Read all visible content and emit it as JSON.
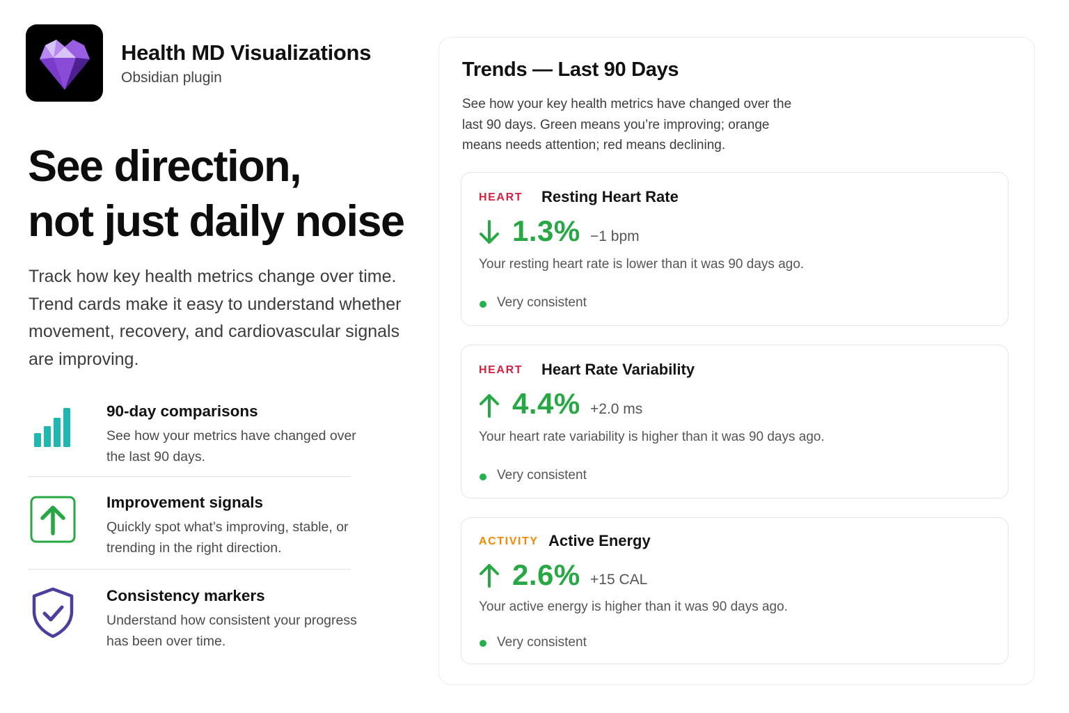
{
  "app": {
    "title": "Health MD Visualizations",
    "subtitle": "Obsidian plugin",
    "icon": "purple-gem-heart-icon"
  },
  "hero": {
    "headline_line1": "See direction,",
    "headline_line2": "not just daily noise",
    "lede": "Track how key health metrics change over time. Trend cards make it easy to understand whether movement, recovery, and cardiovascular signals are improving."
  },
  "features": [
    {
      "icon": "bar-chart-icon",
      "title": "90-day comparisons",
      "description": "See how your metrics have changed over the last 90 days."
    },
    {
      "icon": "arrow-up-box-icon",
      "title": "Improvement signals",
      "description": "Quickly spot what’s improving, stable, or trending in the right direction."
    },
    {
      "icon": "shield-check-icon",
      "title": "Consistency markers",
      "description": "Understand how consistent your progress has been over time."
    }
  ],
  "panel": {
    "title": "Trends — Last 90 Days",
    "description": "See how your key health metrics have changed over the last 90 days. Green means you’re improving; orange means needs attention; red means declining."
  },
  "cards": [
    {
      "category": "HEART",
      "name": "Resting Heart Rate",
      "direction": "down",
      "percent": "1.3%",
      "delta": "−1 bpm",
      "description": "Your resting heart rate is lower than it was 90 days ago.",
      "consistency": "Very consistent"
    },
    {
      "category": "HEART",
      "name": "Heart Rate Variability",
      "direction": "up",
      "percent": "4.4%",
      "delta": "+2.0 ms",
      "description": "Your heart rate variability is higher than it was 90 days ago.",
      "consistency": "Very consistent"
    },
    {
      "category": "ACTIVITY",
      "name": "Active Energy",
      "direction": "up",
      "percent": "2.6%",
      "delta": "+15 CAL",
      "description": "Your active energy is higher than it was 90 days ago.",
      "consistency": "Very consistent"
    }
  ],
  "colors": {
    "improving": "#27a844",
    "heart": "#d3213f",
    "activity": "#f08a00",
    "chart_teal": "#1fb8b0",
    "shield": "#4b3f9e"
  }
}
